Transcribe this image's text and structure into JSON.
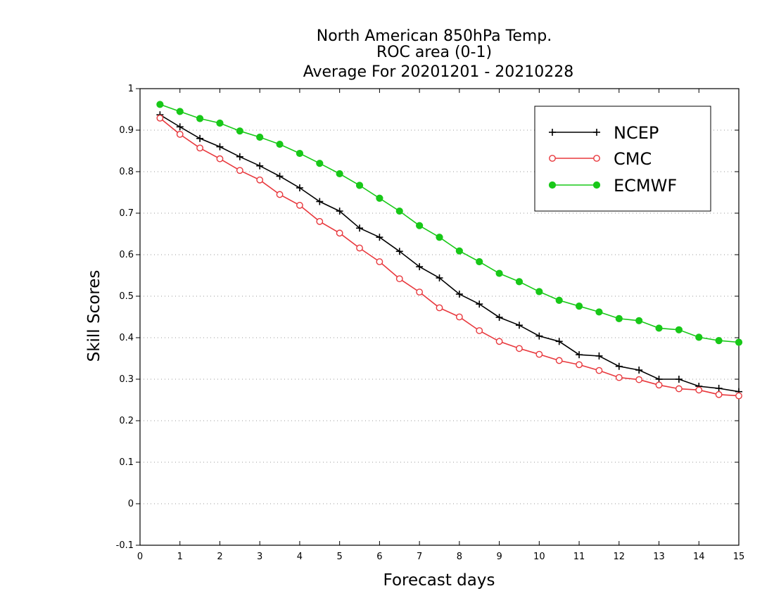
{
  "chart_data": {
    "type": "line",
    "title_lines": [
      "North American 850hPa Temp.",
      "ROC area (0-1)",
      "Average For 20201201 - 20210228"
    ],
    "xlabel": "Forecast days",
    "ylabel": "Skill Scores",
    "xlim": [
      0,
      15
    ],
    "ylim": [
      -0.1,
      1
    ],
    "x_ticks": [
      0,
      1,
      2,
      3,
      4,
      5,
      6,
      7,
      8,
      9,
      10,
      11,
      12,
      13,
      14,
      15
    ],
    "y_ticks": [
      -0.1,
      0,
      0.1,
      0.2,
      0.3,
      0.4,
      0.5,
      0.6,
      0.7,
      0.8,
      0.9,
      1
    ],
    "y_tick_labels": [
      "-0.1",
      "0",
      "0.1",
      "0.2",
      "0.3",
      "0.4",
      "0.5",
      "0.6",
      "0.7",
      "0.8",
      "0.9",
      "1"
    ],
    "grid": "horizontal dotted",
    "legend_position": "top-right",
    "x": [
      0.5,
      1,
      1.5,
      2,
      2.5,
      3,
      3.5,
      4,
      4.5,
      5,
      5.5,
      6,
      6.5,
      7,
      7.5,
      8,
      8.5,
      9,
      9.5,
      10,
      10.5,
      11,
      11.5,
      12,
      12.5,
      13,
      13.5,
      14,
      14.5,
      15
    ],
    "series": [
      {
        "name": "NCEP",
        "color": "#000000",
        "marker": "plus",
        "values": [
          0.937,
          0.908,
          0.88,
          0.86,
          0.836,
          0.814,
          0.789,
          0.761,
          0.728,
          0.705,
          0.664,
          0.642,
          0.608,
          0.571,
          0.544,
          0.505,
          0.481,
          0.449,
          0.43,
          0.404,
          0.391,
          0.359,
          0.356,
          0.331,
          0.322,
          0.3,
          0.3,
          0.283,
          0.278,
          0.27
        ]
      },
      {
        "name": "CMC",
        "color": "#e8383d",
        "marker": "open-circle",
        "values": [
          0.929,
          0.89,
          0.857,
          0.831,
          0.803,
          0.78,
          0.745,
          0.719,
          0.68,
          0.652,
          0.616,
          0.583,
          0.542,
          0.51,
          0.472,
          0.45,
          0.417,
          0.391,
          0.374,
          0.36,
          0.345,
          0.335,
          0.321,
          0.304,
          0.299,
          0.286,
          0.277,
          0.274,
          0.263,
          0.26
        ]
      },
      {
        "name": "ECMWF",
        "color": "#18c818",
        "marker": "filled-circle",
        "values": [
          0.962,
          0.945,
          0.928,
          0.917,
          0.898,
          0.883,
          0.866,
          0.844,
          0.82,
          0.795,
          0.767,
          0.736,
          0.705,
          0.67,
          0.642,
          0.609,
          0.583,
          0.555,
          0.535,
          0.511,
          0.49,
          0.476,
          0.462,
          0.446,
          0.441,
          0.423,
          0.419,
          0.401,
          0.393,
          0.389
        ]
      }
    ]
  }
}
